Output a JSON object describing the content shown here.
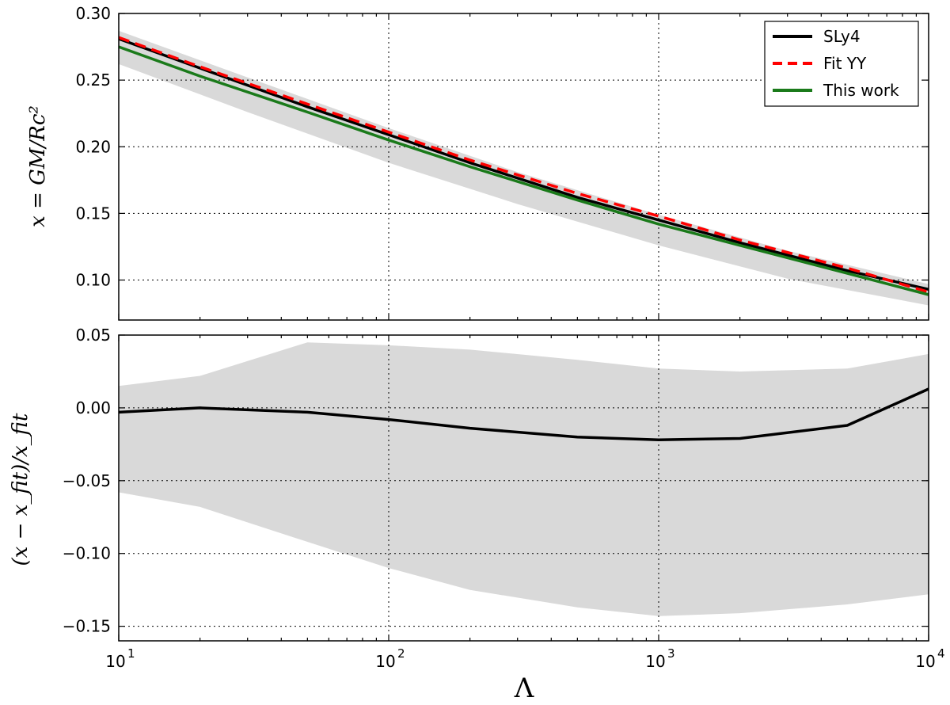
{
  "chart_data": [
    {
      "panel": "top",
      "type": "line",
      "ylabel": "x = GM/Rc²",
      "xlabel": "",
      "xscale": "log",
      "xlim": [
        10,
        10000
      ],
      "ylim": [
        0.07,
        0.3
      ],
      "yticks": [
        0.1,
        0.15,
        0.2,
        0.25,
        0.3
      ],
      "ytick_labels": [
        "0.10",
        "0.15",
        "0.20",
        "0.25",
        "0.30"
      ],
      "grid": true,
      "legend_position": "top-right",
      "band": {
        "color": "#d9d9d9",
        "x": [
          10,
          30,
          100,
          300,
          1000,
          3000,
          10000
        ],
        "upper": [
          0.287,
          0.252,
          0.214,
          0.181,
          0.149,
          0.122,
          0.097
        ],
        "lower": [
          0.262,
          0.226,
          0.188,
          0.157,
          0.126,
          0.101,
          0.081
        ]
      },
      "series": [
        {
          "name": "SLy4",
          "color": "#000000",
          "style": "solid",
          "x": [
            10,
            20,
            50,
            100,
            200,
            500,
            1000,
            2000,
            5000,
            10000
          ],
          "y": [
            0.281,
            0.259,
            0.23,
            0.209,
            0.188,
            0.162,
            0.145,
            0.128,
            0.107,
            0.093
          ]
        },
        {
          "name": "Fit YY",
          "color": "#ff0000",
          "style": "dashed",
          "x": [
            10,
            20,
            50,
            100,
            200,
            500,
            1000,
            2000,
            5000,
            10000
          ],
          "y": [
            0.282,
            0.26,
            0.232,
            0.211,
            0.19,
            0.165,
            0.148,
            0.13,
            0.109,
            0.091
          ]
        },
        {
          "name": "This work",
          "color": "#1a7a1a",
          "style": "solid",
          "x": [
            10,
            20,
            50,
            100,
            200,
            500,
            1000,
            2000,
            5000,
            10000
          ],
          "y": [
            0.275,
            0.253,
            0.226,
            0.205,
            0.185,
            0.16,
            0.142,
            0.126,
            0.105,
            0.089
          ]
        }
      ]
    },
    {
      "panel": "bottom",
      "type": "line",
      "ylabel": "(x − x_fit)/x_fit",
      "xlabel": "Λ",
      "xscale": "log",
      "xlim": [
        10,
        10000
      ],
      "ylim": [
        -0.16,
        0.05
      ],
      "yticks": [
        -0.15,
        -0.1,
        -0.05,
        0.0,
        0.05
      ],
      "ytick_labels": [
        "−0.15",
        "−0.10",
        "−0.05",
        "0.00",
        "0.05"
      ],
      "xtick_bases": [
        "10",
        "10",
        "10",
        "10"
      ],
      "xtick_exponents": [
        "1",
        "2",
        "3",
        "4"
      ],
      "xticks": [
        10,
        100,
        1000,
        10000
      ],
      "grid": true,
      "band": {
        "color": "#d9d9d9",
        "x": [
          10,
          20,
          50,
          100,
          200,
          500,
          1000,
          2000,
          5000,
          10000
        ],
        "upper": [
          0.015,
          0.022,
          0.045,
          0.043,
          0.04,
          0.033,
          0.027,
          0.025,
          0.027,
          0.037
        ],
        "lower": [
          -0.058,
          -0.068,
          -0.092,
          -0.11,
          -0.125,
          -0.137,
          -0.143,
          -0.141,
          -0.135,
          -0.128
        ]
      },
      "series": [
        {
          "name": "SLy4",
          "color": "#000000",
          "style": "solid",
          "x": [
            10,
            20,
            50,
            100,
            200,
            500,
            1000,
            2000,
            5000,
            10000
          ],
          "y": [
            -0.003,
            0.0,
            -0.003,
            -0.008,
            -0.014,
            -0.02,
            -0.022,
            -0.021,
            -0.012,
            0.013
          ]
        }
      ]
    }
  ]
}
